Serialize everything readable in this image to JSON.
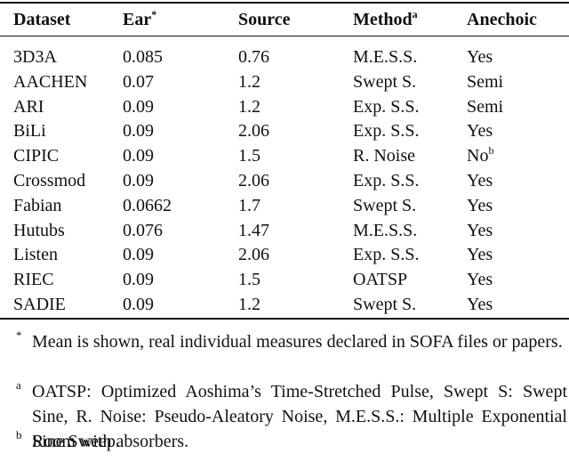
{
  "table": {
    "header": [
      {
        "text": "Dataset"
      },
      {
        "text": "Ear",
        "sup": "*"
      },
      {
        "text": "Source"
      },
      {
        "text": "Method",
        "sup": "a"
      },
      {
        "text": "Anechoic"
      }
    ],
    "rows": [
      [
        {
          "text": "3D3A"
        },
        {
          "text": "0.085"
        },
        {
          "text": "0.76"
        },
        {
          "text": "M.E.S.S."
        },
        {
          "text": "Yes"
        }
      ],
      [
        {
          "text": "AACHEN"
        },
        {
          "text": "0.07"
        },
        {
          "text": "1.2"
        },
        {
          "text": "Swept S."
        },
        {
          "text": "Semi"
        }
      ],
      [
        {
          "text": "ARI"
        },
        {
          "text": "0.09"
        },
        {
          "text": "1.2"
        },
        {
          "text": "Exp. S.S."
        },
        {
          "text": "Semi"
        }
      ],
      [
        {
          "text": "BiLi"
        },
        {
          "text": "0.09"
        },
        {
          "text": "2.06"
        },
        {
          "text": "Exp. S.S."
        },
        {
          "text": "Yes"
        }
      ],
      [
        {
          "text": "CIPIC"
        },
        {
          "text": "0.09"
        },
        {
          "text": "1.5"
        },
        {
          "text": "R. Noise"
        },
        {
          "text": "No",
          "sup": "b"
        }
      ],
      [
        {
          "text": "Crossmod"
        },
        {
          "text": "0.09"
        },
        {
          "text": "2.06"
        },
        {
          "text": "Exp. S.S."
        },
        {
          "text": "Yes"
        }
      ],
      [
        {
          "text": "Fabian"
        },
        {
          "text": "0.0662"
        },
        {
          "text": "1.7"
        },
        {
          "text": "Swept S."
        },
        {
          "text": "Yes"
        }
      ],
      [
        {
          "text": "Hutubs"
        },
        {
          "text": "0.076"
        },
        {
          "text": "1.47"
        },
        {
          "text": "M.E.S.S."
        },
        {
          "text": "Yes"
        }
      ],
      [
        {
          "text": "Listen"
        },
        {
          "text": "0.09"
        },
        {
          "text": "2.06"
        },
        {
          "text": "Exp. S.S."
        },
        {
          "text": "Yes"
        }
      ],
      [
        {
          "text": "RIEC"
        },
        {
          "text": "0.09"
        },
        {
          "text": "1.5"
        },
        {
          "text": "OATSP"
        },
        {
          "text": "Yes"
        }
      ],
      [
        {
          "text": "SADIE"
        },
        {
          "text": "0.09"
        },
        {
          "text": "1.2"
        },
        {
          "text": "Swept S."
        },
        {
          "text": "Yes"
        }
      ]
    ],
    "footnotes": [
      {
        "mark": "*",
        "text": "Mean is shown, real individual measures declared in SOFA files or papers."
      },
      {
        "mark": "a",
        "text": "OATSP: Optimized Aoshima’s Time-Stretched Pulse, Swept S: Swept Sine, R. Noise: Pseudo-Aleatory Noise, M.E.S.S.: Multiple Exponential Sine Sweep."
      },
      {
        "mark": "b",
        "text": "Room with absorbers."
      }
    ]
  }
}
